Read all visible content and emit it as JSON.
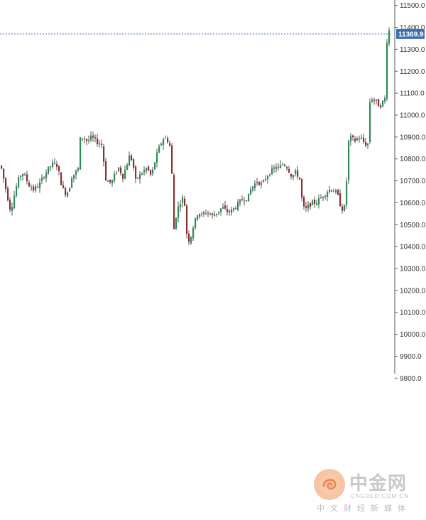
{
  "chart_data": {
    "type": "candlestick",
    "ylim": [
      9775,
      11525
    ],
    "y_ticks": [
      "11500.0",
      "11400.0",
      "11300.0",
      "11200.0",
      "11100.0",
      "11000.0",
      "10900.0",
      "10800.0",
      "10700.0",
      "10600.0",
      "10500.0",
      "10400.0",
      "10300.0",
      "10200.0",
      "10100.0",
      "10000.0",
      "9900.0",
      "9800.0"
    ],
    "y_tick_values": [
      11500,
      11400,
      11300,
      11200,
      11100,
      11000,
      10900,
      10800,
      10700,
      10600,
      10500,
      10400,
      10300,
      10200,
      10100,
      10000,
      9900,
      9800
    ],
    "current_price": 11369.9,
    "current_price_label": "11369.9",
    "colors": {
      "up": "#2e8b57",
      "down": "#8b2e2e",
      "wick": "#2b2b2b",
      "price_line": "#3b6fb6",
      "badge": "#3b6fb6",
      "axis": "#555555"
    },
    "anchors": [
      [
        0,
        10770
      ],
      [
        6,
        10680
      ],
      [
        10,
        10620
      ],
      [
        14,
        10560
      ],
      [
        18,
        10620
      ],
      [
        24,
        10700
      ],
      [
        30,
        10740
      ],
      [
        34,
        10720
      ],
      [
        40,
        10680
      ],
      [
        46,
        10660
      ],
      [
        54,
        10680
      ],
      [
        60,
        10720
      ],
      [
        68,
        10760
      ],
      [
        74,
        10780
      ],
      [
        80,
        10770
      ],
      [
        84,
        10700
      ],
      [
        88,
        10660
      ],
      [
        92,
        10640
      ],
      [
        96,
        10660
      ],
      [
        100,
        10720
      ],
      [
        106,
        10740
      ],
      [
        110,
        10760
      ],
      [
        112,
        10890
      ],
      [
        116,
        10900
      ],
      [
        122,
        10880
      ],
      [
        128,
        10900
      ],
      [
        134,
        10880
      ],
      [
        140,
        10870
      ],
      [
        144,
        10860
      ],
      [
        146,
        10720
      ],
      [
        150,
        10700
      ],
      [
        156,
        10690
      ],
      [
        162,
        10740
      ],
      [
        166,
        10760
      ],
      [
        172,
        10720
      ],
      [
        178,
        10780
      ],
      [
        182,
        10820
      ],
      [
        186,
        10780
      ],
      [
        190,
        10700
      ],
      [
        194,
        10720
      ],
      [
        200,
        10740
      ],
      [
        206,
        10760
      ],
      [
        212,
        10720
      ],
      [
        218,
        10800
      ],
      [
        224,
        10860
      ],
      [
        230,
        10900
      ],
      [
        236,
        10880
      ],
      [
        240,
        10840
      ],
      [
        242,
        10620
      ],
      [
        244,
        10480
      ],
      [
        248,
        10560
      ],
      [
        252,
        10600
      ],
      [
        256,
        10620
      ],
      [
        260,
        10580
      ],
      [
        262,
        10460
      ],
      [
        266,
        10420
      ],
      [
        270,
        10480
      ],
      [
        274,
        10520
      ],
      [
        278,
        10560
      ],
      [
        284,
        10540
      ],
      [
        290,
        10560
      ],
      [
        298,
        10540
      ],
      [
        306,
        10560
      ],
      [
        312,
        10580
      ],
      [
        318,
        10560
      ],
      [
        324,
        10560
      ],
      [
        330,
        10580
      ],
      [
        336,
        10600
      ],
      [
        342,
        10620
      ],
      [
        348,
        10620
      ],
      [
        352,
        10660
      ],
      [
        356,
        10680
      ],
      [
        362,
        10700
      ],
      [
        368,
        10680
      ],
      [
        374,
        10720
      ],
      [
        380,
        10740
      ],
      [
        386,
        10760
      ],
      [
        392,
        10760
      ],
      [
        398,
        10780
      ],
      [
        404,
        10760
      ],
      [
        410,
        10720
      ],
      [
        416,
        10740
      ],
      [
        422,
        10700
      ],
      [
        424,
        10620
      ],
      [
        428,
        10560
      ],
      [
        432,
        10580
      ],
      [
        438,
        10600
      ],
      [
        444,
        10600
      ],
      [
        450,
        10620
      ],
      [
        456,
        10640
      ],
      [
        462,
        10660
      ],
      [
        468,
        10660
      ],
      [
        474,
        10640
      ],
      [
        480,
        10570
      ],
      [
        484,
        10580
      ],
      [
        486,
        10640
      ],
      [
        488,
        10760
      ],
      [
        490,
        10880
      ],
      [
        494,
        10900
      ],
      [
        498,
        10880
      ],
      [
        504,
        10900
      ],
      [
        510,
        10880
      ],
      [
        516,
        10860
      ],
      [
        518,
        10880
      ],
      [
        520,
        11060
      ],
      [
        524,
        11080
      ],
      [
        528,
        11060
      ],
      [
        534,
        11040
      ],
      [
        538,
        11060
      ],
      [
        542,
        11080
      ],
      [
        544,
        11340
      ],
      [
        546,
        11400
      ],
      [
        548,
        11369.9
      ]
    ]
  },
  "watermark": {
    "logo_text": "中金网",
    "domain": "CNGOLD.COM.CN",
    "tagline": "中文财经新媒体"
  }
}
